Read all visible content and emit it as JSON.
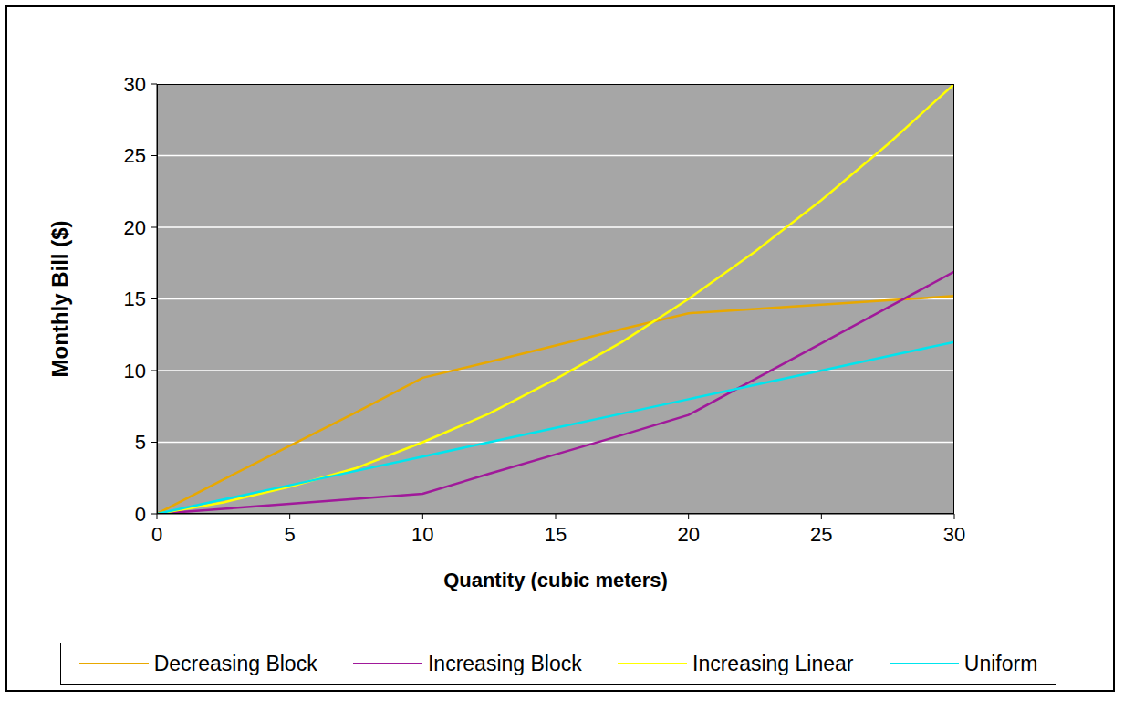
{
  "chart_data": {
    "type": "line",
    "x_label": "Quantity (cubic meters)",
    "y_label": "Monthly Bill ($)",
    "x": [
      0,
      2.5,
      5,
      7.5,
      10,
      12.5,
      15,
      17.5,
      20,
      22.5,
      25,
      27.5,
      30
    ],
    "series": [
      {
        "name": "Decreasing Block",
        "color": "#E8A800",
        "values": [
          0,
          2.4,
          4.75,
          7.1,
          9.5,
          10.6,
          11.75,
          12.9,
          14,
          14.3,
          14.6,
          14.9,
          15.2
        ]
      },
      {
        "name": "Increasing Block",
        "color": "#A0199A",
        "values": [
          0,
          0.35,
          0.7,
          1.05,
          1.4,
          2.8,
          4.15,
          5.5,
          6.9,
          9.4,
          11.9,
          14.4,
          16.9
        ]
      },
      {
        "name": "Increasing Linear",
        "color": "#FFFF00",
        "values": [
          0,
          0.8,
          1.9,
          3.2,
          5,
          7,
          9.4,
          12,
          15,
          18.3,
          21.9,
          25.8,
          30
        ]
      },
      {
        "name": "Uniform",
        "color": "#00E5EE",
        "values": [
          0,
          1,
          2,
          3,
          4,
          5,
          6,
          7,
          8,
          9,
          10,
          11,
          12
        ]
      }
    ],
    "xlim": [
      0,
      30
    ],
    "ylim": [
      0,
      30
    ],
    "xticks": [
      0,
      5,
      10,
      15,
      20,
      25,
      30
    ],
    "yticks": [
      0,
      5,
      10,
      15,
      20,
      25,
      30
    ],
    "grid": true,
    "legend": "bottom"
  }
}
